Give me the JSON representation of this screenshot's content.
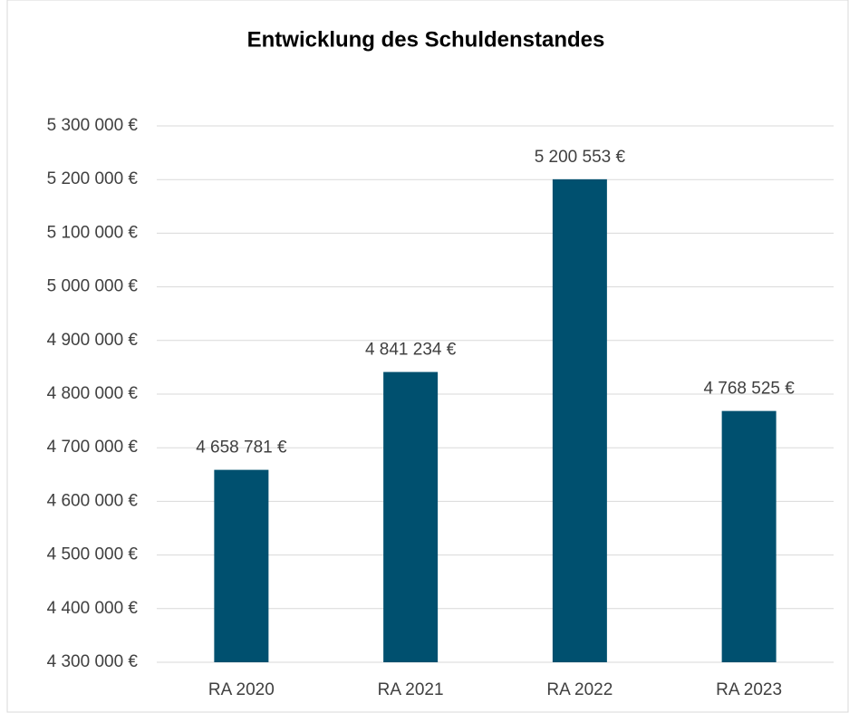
{
  "chart_data": {
    "type": "bar",
    "title": "Entwicklung des Schuldenstandes",
    "categories": [
      "RA 2020",
      "RA 2021",
      "RA 2022",
      "RA 2023"
    ],
    "values": [
      4658781,
      4841234,
      5200553,
      4768525
    ],
    "value_labels": [
      "4 658 781 €",
      "4 841 234 €",
      "5 200 553 €",
      "4 768 525 €"
    ],
    "color": "#00506f",
    "ylim": [
      4300000,
      5300000
    ],
    "yticks": [
      {
        "value": 4300000,
        "label": "4 300 000 €"
      },
      {
        "value": 4400000,
        "label": "4 400 000 €"
      },
      {
        "value": 4500000,
        "label": "4 500 000 €"
      },
      {
        "value": 4600000,
        "label": "4 600 000 €"
      },
      {
        "value": 4700000,
        "label": "4 700 000 €"
      },
      {
        "value": 4800000,
        "label": "4 800 000 €"
      },
      {
        "value": 4900000,
        "label": "4 900 000 €"
      },
      {
        "value": 5000000,
        "label": "5 000 000 €"
      },
      {
        "value": 5100000,
        "label": "5 100 000 €"
      },
      {
        "value": 5200000,
        "label": "5 200 000 €"
      },
      {
        "value": 5300000,
        "label": "5 300 000 €"
      }
    ],
    "grid": true
  }
}
